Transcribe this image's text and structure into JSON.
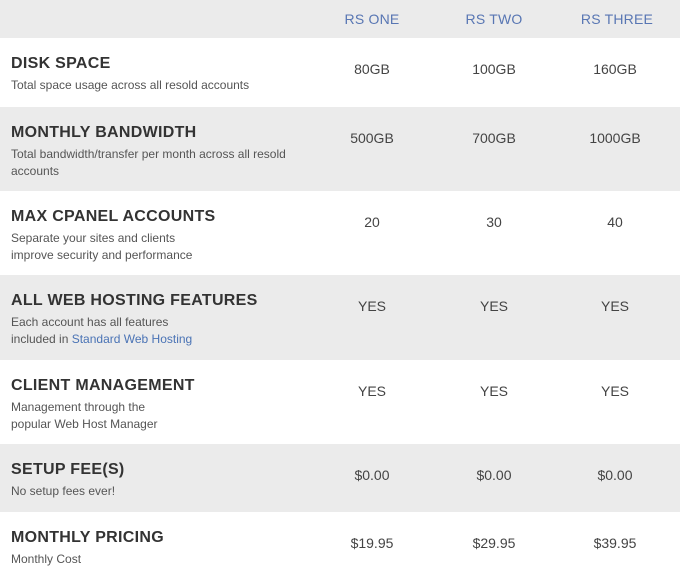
{
  "plans": [
    "RS ONE",
    "RS TWO",
    "RS THREE"
  ],
  "rows": [
    {
      "title": "DISK SPACE",
      "desc": "Total space usage across all resold accounts",
      "values": [
        "80GB",
        "100GB",
        "160GB"
      ]
    },
    {
      "title": "MONTHLY BANDWIDTH",
      "desc_line1": "Total bandwidth/transfer per month across all resold",
      "desc_line2": "accounts",
      "values": [
        "500GB",
        "700GB",
        "1000GB"
      ]
    },
    {
      "title": "MAX CPANEL ACCOUNTS",
      "desc_line1": "Separate your sites and clients",
      "desc_line2": "improve security and performance",
      "values": [
        "20",
        "30",
        "40"
      ]
    },
    {
      "title": "ALL WEB HOSTING FEATURES",
      "desc_line1": "Each account has all features",
      "desc_prefix": "included in ",
      "desc_link": "Standard Web Hosting",
      "values": [
        "YES",
        "YES",
        "YES"
      ]
    },
    {
      "title": "CLIENT MANAGEMENT",
      "desc_line1": "Management through the",
      "desc_line2": "popular Web Host Manager",
      "values": [
        "YES",
        "YES",
        "YES"
      ]
    },
    {
      "title": "SETUP FEE(S)",
      "desc": "No setup fees ever!",
      "values": [
        "$0.00",
        "$0.00",
        "$0.00"
      ]
    },
    {
      "title": "MONTHLY PRICING",
      "desc": "Monthly Cost",
      "values": [
        "$19.95",
        "$29.95",
        "$39.95"
      ]
    }
  ],
  "colors": {
    "plan_header": "#5876b3",
    "link": "#4a73b5",
    "row_white": "#ffffff",
    "row_gray": "#ebebeb"
  }
}
